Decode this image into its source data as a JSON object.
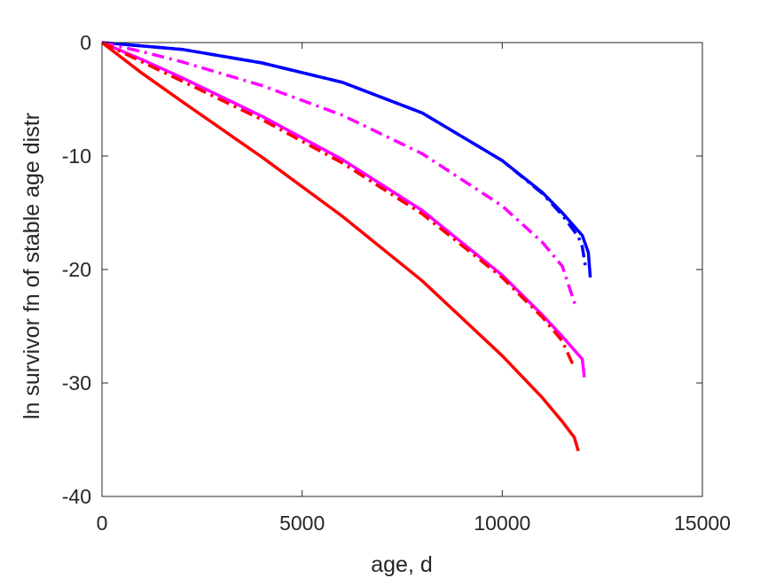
{
  "chart_data": {
    "type": "line",
    "title": "",
    "xlabel": "age, d",
    "ylabel": "ln survivor fn of stable age distr",
    "xlim": [
      0,
      15000
    ],
    "ylim": [
      -40,
      0
    ],
    "xticks": [
      0,
      5000,
      10000,
      15000
    ],
    "yticks": [
      0,
      -10,
      -20,
      -30,
      -40
    ],
    "xtick_labels": [
      "0",
      "5000",
      "10000",
      "15000"
    ],
    "ytick_labels": [
      "0",
      "-10",
      "-20",
      "-30",
      "-40"
    ],
    "grid": false,
    "legend": false,
    "series": [
      {
        "color": "#0000ff",
        "style": "solid",
        "x": [
          0,
          2000,
          4000,
          6000,
          8000,
          10000,
          11000,
          11500,
          12000,
          12150,
          12200
        ],
        "y": [
          0,
          -0.6,
          -1.8,
          -3.5,
          -6.2,
          -10.4,
          -13.2,
          -15.0,
          -17.0,
          -18.5,
          -20.7
        ]
      },
      {
        "color": "#0000ff",
        "style": "dashdot",
        "x": [
          0,
          2000,
          4000,
          6000,
          8000,
          10000,
          11000,
          11500,
          11900,
          12000,
          12080
        ],
        "y": [
          0,
          -0.6,
          -1.8,
          -3.5,
          -6.2,
          -10.4,
          -13.3,
          -15.2,
          -17.1,
          -18.0,
          -19.8
        ]
      },
      {
        "color": "#ff00ff",
        "style": "solid",
        "x": [
          0,
          1000,
          2000,
          4000,
          6000,
          8000,
          10000,
          11000,
          11500,
          12000,
          12050
        ],
        "y": [
          0,
          -1.5,
          -3.1,
          -6.5,
          -10.3,
          -14.8,
          -20.5,
          -24.0,
          -25.9,
          -27.9,
          -29.5
        ]
      },
      {
        "color": "#ff00ff",
        "style": "dashdot",
        "x": [
          0,
          1000,
          2000,
          4000,
          6000,
          8000,
          10000,
          11000,
          11500,
          11820
        ],
        "y": [
          0,
          -0.8,
          -1.7,
          -3.8,
          -6.4,
          -9.8,
          -14.4,
          -17.6,
          -19.7,
          -23.1
        ]
      },
      {
        "color": "#ff0000",
        "style": "solid",
        "x": [
          0,
          1000,
          2000,
          4000,
          6000,
          8000,
          10000,
          11000,
          11500,
          11800,
          11900
        ],
        "y": [
          0,
          -2.7,
          -5.2,
          -10.1,
          -15.3,
          -21.0,
          -27.6,
          -31.3,
          -33.4,
          -34.8,
          -36.0
        ]
      },
      {
        "color": "#ff0000",
        "style": "dashdot",
        "x": [
          0,
          1000,
          2000,
          4000,
          6000,
          8000,
          10000,
          11000,
          11500,
          11780
        ],
        "y": [
          0,
          -1.7,
          -3.4,
          -6.8,
          -10.6,
          -15.1,
          -20.7,
          -24.2,
          -26.3,
          -28.5
        ]
      }
    ]
  }
}
